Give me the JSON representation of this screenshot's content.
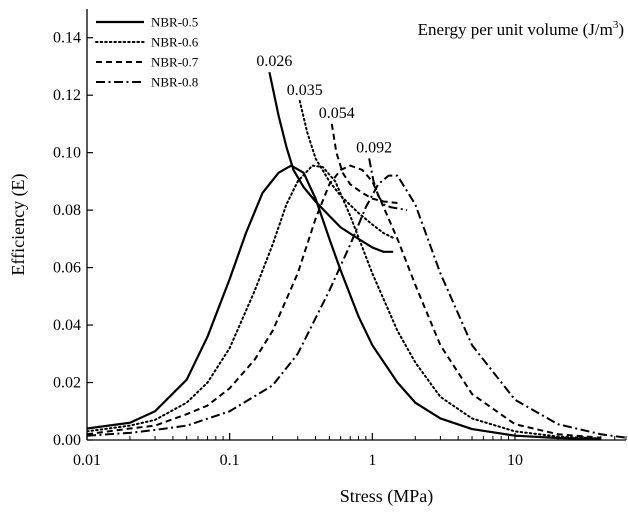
{
  "chart_data": {
    "type": "line",
    "title": "",
    "xlabel": "Stress (MPa)",
    "ylabel": "Efficiency (E)",
    "x_scale": "log",
    "xlim": [
      0.01,
      60
    ],
    "ylim": [
      0,
      0.15
    ],
    "x_ticks": [
      0.01,
      0.1,
      1,
      10
    ],
    "x_tick_labels": [
      "0.01",
      "0.1",
      "1",
      "10"
    ],
    "y_ticks": [
      0,
      0.02,
      0.04,
      0.06,
      0.08,
      0.1,
      0.12,
      0.14
    ],
    "y_tick_labels": [
      "0.00",
      "0.02",
      "0.04",
      "0.06",
      "0.08",
      "0.10",
      "0.12",
      "0.14"
    ],
    "grid": false,
    "legend_position": "top-left",
    "series": [
      {
        "name": "NBR-0.5",
        "style": "solid",
        "efficiency_curve": [
          [
            0.01,
            0.004
          ],
          [
            0.02,
            0.006
          ],
          [
            0.03,
            0.01
          ],
          [
            0.05,
            0.021
          ],
          [
            0.07,
            0.036
          ],
          [
            0.1,
            0.056
          ],
          [
            0.13,
            0.072
          ],
          [
            0.17,
            0.086
          ],
          [
            0.22,
            0.093
          ],
          [
            0.27,
            0.0955
          ],
          [
            0.33,
            0.093
          ],
          [
            0.4,
            0.084
          ],
          [
            0.5,
            0.07
          ],
          [
            0.6,
            0.059
          ],
          [
            0.8,
            0.043
          ],
          [
            1,
            0.033
          ],
          [
            1.5,
            0.02
          ],
          [
            2,
            0.013
          ],
          [
            3,
            0.0075
          ],
          [
            5,
            0.0038
          ],
          [
            10,
            0.0015
          ],
          [
            20,
            0.0007
          ],
          [
            40,
            0.0003
          ]
        ],
        "energy_curve": [
          [
            0.19,
            0.128
          ],
          [
            0.22,
            0.113
          ],
          [
            0.25,
            0.102
          ],
          [
            0.28,
            0.094
          ],
          [
            0.33,
            0.088
          ],
          [
            0.4,
            0.083
          ],
          [
            0.5,
            0.078
          ],
          [
            0.6,
            0.074
          ],
          [
            0.8,
            0.07
          ],
          [
            1,
            0.067
          ],
          [
            1.2,
            0.0655
          ],
          [
            1.4,
            0.0655
          ]
        ]
      },
      {
        "name": "NBR-0.6",
        "style": "dotted",
        "efficiency_curve": [
          [
            0.01,
            0.003
          ],
          [
            0.02,
            0.005
          ],
          [
            0.03,
            0.007
          ],
          [
            0.05,
            0.013
          ],
          [
            0.07,
            0.02
          ],
          [
            0.1,
            0.032
          ],
          [
            0.15,
            0.052
          ],
          [
            0.2,
            0.068
          ],
          [
            0.25,
            0.082
          ],
          [
            0.3,
            0.09
          ],
          [
            0.38,
            0.0955
          ],
          [
            0.45,
            0.095
          ],
          [
            0.55,
            0.09
          ],
          [
            0.7,
            0.078
          ],
          [
            1,
            0.058
          ],
          [
            1.5,
            0.038
          ],
          [
            2,
            0.027
          ],
          [
            3,
            0.015
          ],
          [
            5,
            0.0075
          ],
          [
            10,
            0.003
          ],
          [
            20,
            0.0012
          ],
          [
            40,
            0.0005
          ]
        ],
        "energy_curve": [
          [
            0.31,
            0.118
          ],
          [
            0.35,
            0.107
          ],
          [
            0.4,
            0.098
          ],
          [
            0.5,
            0.09
          ],
          [
            0.6,
            0.085
          ],
          [
            0.8,
            0.079
          ],
          [
            1,
            0.075
          ],
          [
            1.2,
            0.072
          ],
          [
            1.45,
            0.07
          ]
        ]
      },
      {
        "name": "NBR-0.7",
        "style": "dashed",
        "efficiency_curve": [
          [
            0.01,
            0.002
          ],
          [
            0.02,
            0.004
          ],
          [
            0.03,
            0.005
          ],
          [
            0.05,
            0.009
          ],
          [
            0.07,
            0.012
          ],
          [
            0.1,
            0.018
          ],
          [
            0.15,
            0.028
          ],
          [
            0.2,
            0.038
          ],
          [
            0.3,
            0.058
          ],
          [
            0.4,
            0.077
          ],
          [
            0.5,
            0.089
          ],
          [
            0.6,
            0.094
          ],
          [
            0.7,
            0.0955
          ],
          [
            0.85,
            0.094
          ],
          [
            1,
            0.09
          ],
          [
            1.5,
            0.07
          ],
          [
            2,
            0.054
          ],
          [
            3,
            0.033
          ],
          [
            5,
            0.016
          ],
          [
            10,
            0.0055
          ],
          [
            20,
            0.002
          ],
          [
            40,
            0.0008
          ]
        ],
        "energy_curve": [
          [
            0.52,
            0.11
          ],
          [
            0.56,
            0.1
          ],
          [
            0.62,
            0.093
          ],
          [
            0.7,
            0.089
          ],
          [
            0.85,
            0.086
          ],
          [
            1,
            0.084
          ],
          [
            1.2,
            0.083
          ],
          [
            1.5,
            0.0825
          ]
        ]
      },
      {
        "name": "NBR-0.8",
        "style": "dash-dot",
        "efficiency_curve": [
          [
            0.01,
            0.0015
          ],
          [
            0.02,
            0.0025
          ],
          [
            0.03,
            0.0035
          ],
          [
            0.05,
            0.005
          ],
          [
            0.1,
            0.01
          ],
          [
            0.2,
            0.019
          ],
          [
            0.3,
            0.03
          ],
          [
            0.5,
            0.052
          ],
          [
            0.7,
            0.068
          ],
          [
            0.9,
            0.081
          ],
          [
            1.1,
            0.089
          ],
          [
            1.3,
            0.092
          ],
          [
            1.5,
            0.092
          ],
          [
            2,
            0.082
          ],
          [
            3,
            0.058
          ],
          [
            5,
            0.033
          ],
          [
            10,
            0.014
          ],
          [
            20,
            0.0055
          ],
          [
            40,
            0.002
          ],
          [
            60,
            0.0008
          ]
        ],
        "energy_curve": [
          [
            0.95,
            0.098
          ],
          [
            1.02,
            0.09
          ],
          [
            1.1,
            0.085
          ],
          [
            1.2,
            0.082
          ],
          [
            1.35,
            0.081
          ],
          [
            1.55,
            0.0805
          ],
          [
            1.75,
            0.08
          ]
        ]
      }
    ],
    "inset_title": "Energy per unit volume (J/m",
    "inset_title_superscript": "3",
    "inset_title_suffix": ")",
    "annotations": [
      {
        "text": "0.026",
        "x": 0.19,
        "y": 0.128
      },
      {
        "text": "0.035",
        "x": 0.31,
        "y": 0.118
      },
      {
        "text": "0.054",
        "x": 0.52,
        "y": 0.11
      },
      {
        "text": "0.092",
        "x": 0.95,
        "y": 0.098
      }
    ]
  }
}
